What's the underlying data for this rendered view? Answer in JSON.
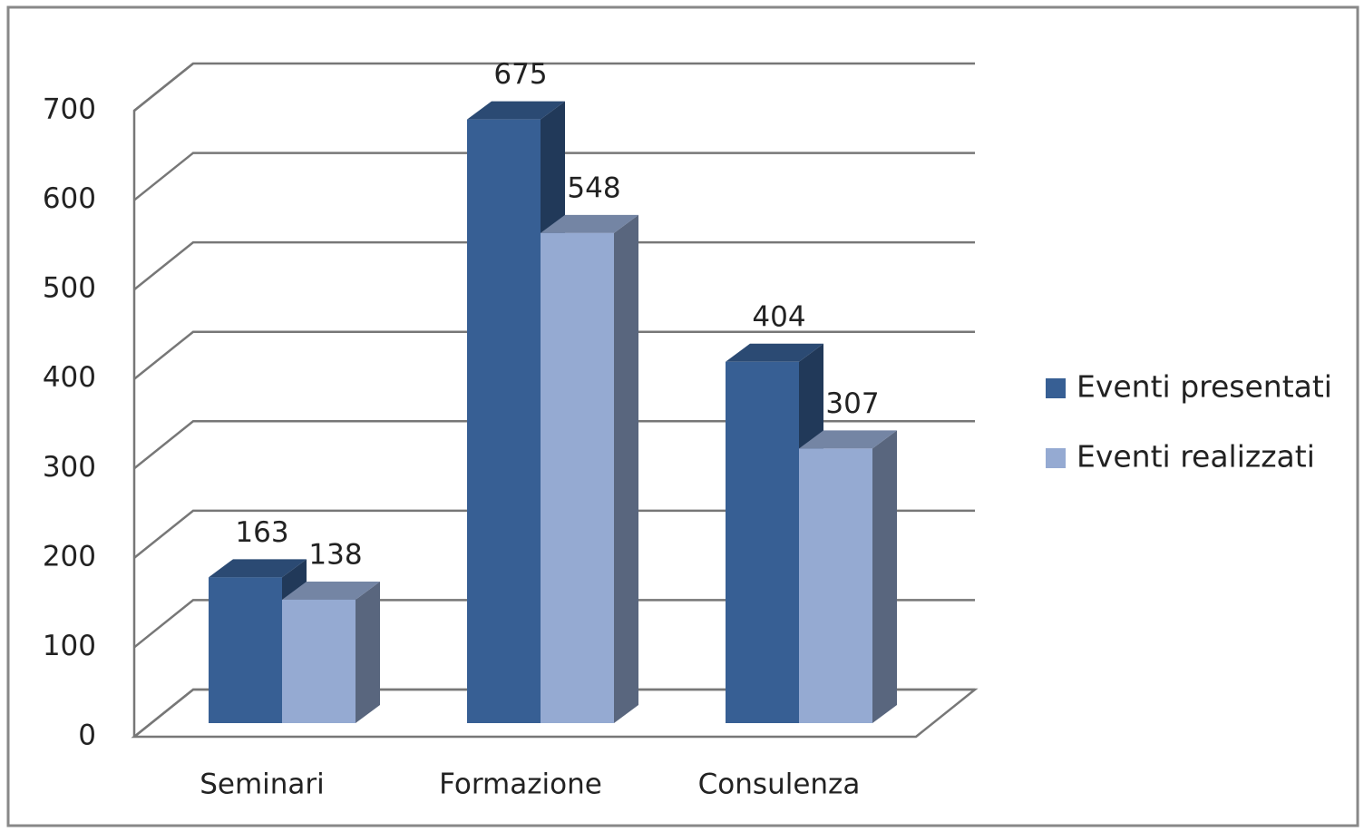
{
  "chart_data": {
    "type": "bar3d",
    "categories": [
      "Seminari",
      "Formazione",
      "Consulenza"
    ],
    "series": [
      {
        "name": "Eventi presentati",
        "color": "#375f94",
        "values": [
          163,
          675,
          404
        ]
      },
      {
        "name": "Eventi realizzati",
        "color": "#95aad2",
        "values": [
          138,
          548,
          307
        ]
      }
    ],
    "ylim": [
      0,
      700
    ],
    "yticks": [
      0,
      100,
      200,
      300,
      400,
      500,
      600,
      700
    ],
    "grid": true,
    "legend": "right"
  }
}
